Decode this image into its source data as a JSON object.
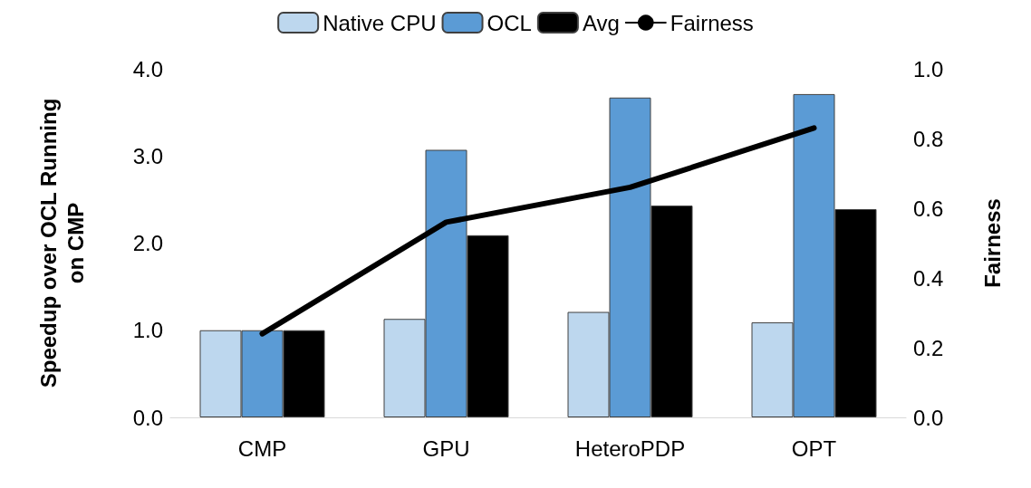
{
  "chart_data": {
    "type": "bar",
    "categories": [
      "CMP",
      "GPU",
      "HeteroPDP",
      "OPT"
    ],
    "ylabel": "Speedup over OCL Running\non CMP",
    "y2label": "Fairness",
    "series": [
      {
        "name": "Native CPU",
        "color": "#bdd7ee",
        "values": [
          1.0,
          1.13,
          1.21,
          1.09
        ]
      },
      {
        "name": "OCL",
        "color": "#5b9bd5",
        "values": [
          1.0,
          3.07,
          3.67,
          3.71
        ]
      },
      {
        "name": "Avg",
        "color": "#000000",
        "values": [
          1.0,
          2.09,
          2.43,
          2.39
        ]
      },
      {
        "name": "Fairness",
        "type": "line",
        "axis": "y2",
        "color": "#000000",
        "values": [
          0.24,
          0.56,
          0.66,
          0.83
        ]
      }
    ],
    "ylim": [
      0,
      4
    ],
    "yticks": [
      {
        "value": 0,
        "label": "0.0"
      },
      {
        "value": 1,
        "label": "1.0"
      },
      {
        "value": 2,
        "label": "2.0"
      },
      {
        "value": 3,
        "label": "3.0"
      },
      {
        "value": 4,
        "label": "4.0"
      }
    ],
    "y2lim": [
      0,
      1
    ],
    "y2ticks": [
      {
        "value": 0,
        "label": "0.0"
      },
      {
        "value": 0.2,
        "label": "0.2"
      },
      {
        "value": 0.4,
        "label": "0.4"
      },
      {
        "value": 0.6,
        "label": "0.6"
      },
      {
        "value": 0.8,
        "label": "0.8"
      },
      {
        "value": 1,
        "label": "1.0"
      }
    ],
    "grid": false,
    "legend": "top",
    "marker": "none",
    "line_style": "solid"
  }
}
